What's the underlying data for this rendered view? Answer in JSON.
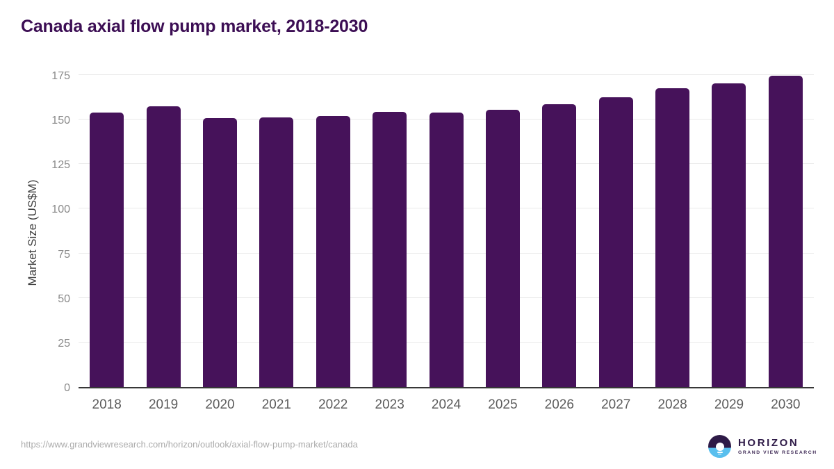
{
  "header": {
    "title": "Canada axial flow pump market, 2018-2030"
  },
  "chart_data": {
    "type": "bar",
    "title": "Canada axial flow pump market, 2018-2030",
    "categories": [
      "2018",
      "2019",
      "2020",
      "2021",
      "2022",
      "2023",
      "2024",
      "2025",
      "2026",
      "2027",
      "2028",
      "2029",
      "2030"
    ],
    "values": [
      153.8,
      157.3,
      150.9,
      151.2,
      152.2,
      154.4,
      154.1,
      155.5,
      158.6,
      162.4,
      167.5,
      170.3,
      174.6
    ],
    "xlabel": "",
    "ylabel": "Market Size (US$M)",
    "ylim": [
      0,
      175
    ],
    "yticks": [
      0,
      25,
      50,
      75,
      100,
      125,
      150,
      175
    ],
    "grid": true,
    "legend_position": "none",
    "bar_color": "#46125A",
    "gridline_color": "#e9e9e9",
    "axis_line_color": "#373737",
    "ytick_color": "#8a8a8a",
    "xtick_color": "#5c5c5c",
    "title_color": "#3C0E54"
  },
  "footer": {
    "source_url": "https://www.grandviewresearch.com/horizon/outlook/axial-flow-pump-market/canada",
    "logo": {
      "brand": "HORIZON",
      "tagline": "GRAND VIEW RESEARCH",
      "purple": "#2E1A47",
      "blue": "#59BFEE"
    }
  }
}
